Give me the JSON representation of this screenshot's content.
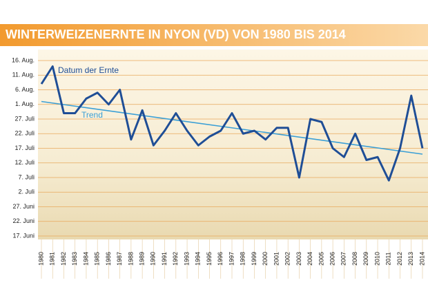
{
  "chart_data": {
    "type": "line",
    "title": "WINTERWEIZENERNTE IN NYON (VD) VON 1980 BIS 2014",
    "categories": [
      "1980",
      "1981",
      "1982",
      "1983",
      "1984",
      "1985",
      "1986",
      "1987",
      "1988",
      "1989",
      "1990",
      "1991",
      "1992",
      "1993",
      "1994",
      "1995",
      "1996",
      "1997",
      "1998",
      "1999",
      "2000",
      "2001",
      "2002",
      "2003",
      "2004",
      "2005",
      "2006",
      "2007",
      "2008",
      "2009",
      "2010",
      "2011",
      "2012",
      "2013",
      "2014"
    ],
    "series": [
      {
        "name": "Datum der Ernte",
        "color": "#1f4e96",
        "values": [
          220,
          226,
          210,
          210,
          215,
          217,
          213,
          218,
          201,
          211,
          199,
          204,
          210,
          204,
          199,
          202,
          204,
          210,
          203,
          204,
          201,
          205,
          205,
          188,
          208,
          207,
          198,
          195,
          203,
          194,
          195,
          187,
          198,
          216,
          198
        ]
      }
    ],
    "trend": {
      "name": "Trend",
      "color": "#3a9fd6",
      "start": 214,
      "end": 196
    },
    "ylim": [
      168,
      230
    ],
    "yticks": [
      {
        "value": 168,
        "label": "17. Juni"
      },
      {
        "value": 173,
        "label": "22. Juni"
      },
      {
        "value": 178,
        "label": "27. Juni"
      },
      {
        "value": 183,
        "label": "2. Juli"
      },
      {
        "value": 188,
        "label": "7. Juli"
      },
      {
        "value": 193,
        "label": "12. Juli"
      },
      {
        "value": 198,
        "label": "17. Juli"
      },
      {
        "value": 203,
        "label": "22. Juli"
      },
      {
        "value": 208,
        "label": "27. Juli"
      },
      {
        "value": 213,
        "label": "1. Aug."
      },
      {
        "value": 218,
        "label": "6. Aug."
      },
      {
        "value": 223,
        "label": "11. Aug."
      },
      {
        "value": 228,
        "label": "16. Aug."
      }
    ],
    "grid": true
  }
}
